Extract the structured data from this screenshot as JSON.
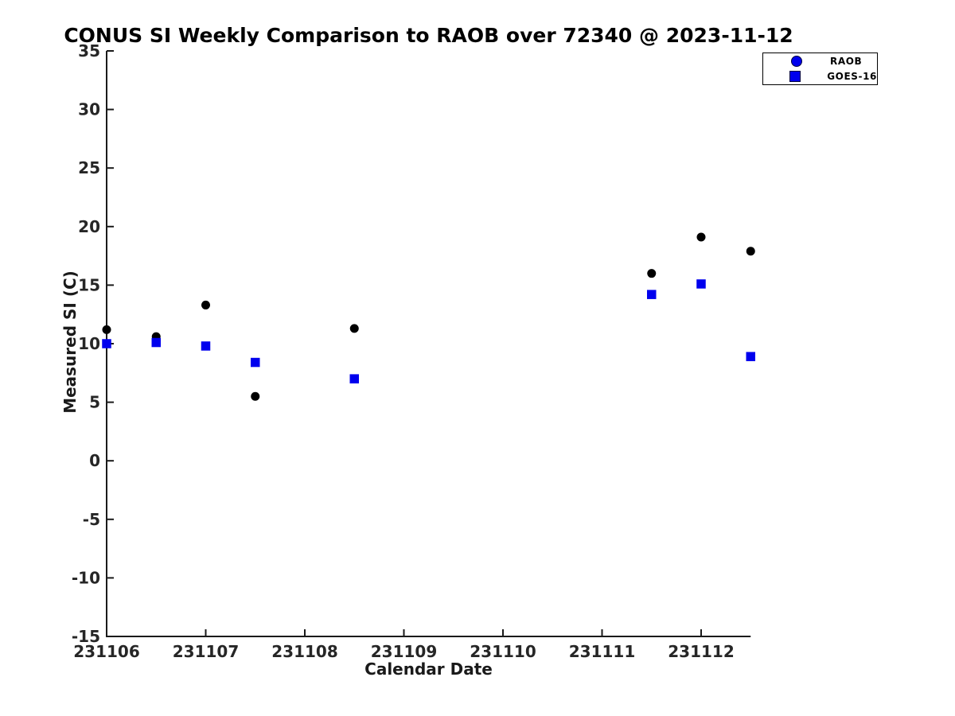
{
  "page": {
    "background": "#ffffff"
  },
  "chart_data": {
    "type": "scatter",
    "title": "CONUS SI Weekly Comparison to RAOB over 72340 @ 2023-11-12",
    "xlabel": "Calendar Date",
    "ylabel": "Measured SI (C)",
    "xlim": [
      231106,
      231112.5
    ],
    "ylim": [
      -15,
      35
    ],
    "x_ticks": [
      231106,
      231107,
      231108,
      231109,
      231110,
      231111,
      231112
    ],
    "y_ticks": [
      35,
      30,
      25,
      20,
      15,
      10,
      5,
      0,
      -5,
      -10,
      -15
    ],
    "grid": false,
    "legend_position": "top-right",
    "axis_color": "#1a1a1a",
    "tick_label_color": "#262626",
    "series": [
      {
        "name": "RAOB",
        "marker": "circle",
        "color": "#000000",
        "legend_marker_color": "#0000ee",
        "points": [
          [
            231106.0,
            11.2
          ],
          [
            231106.5,
            10.6
          ],
          [
            231107.0,
            13.3
          ],
          [
            231107.5,
            5.5
          ],
          [
            231108.5,
            11.3
          ],
          [
            231111.5,
            16.0
          ],
          [
            231112.0,
            19.1
          ],
          [
            231112.5,
            17.9
          ]
        ]
      },
      {
        "name": "GOES-16",
        "marker": "square",
        "color": "#0000ee",
        "legend_marker_color": "#0000ee",
        "points": [
          [
            231106.0,
            10.0
          ],
          [
            231106.5,
            10.1
          ],
          [
            231107.0,
            9.8
          ],
          [
            231107.5,
            8.4
          ],
          [
            231108.5,
            7.0
          ],
          [
            231111.5,
            14.2
          ],
          [
            231112.0,
            15.1
          ],
          [
            231112.5,
            8.9
          ]
        ]
      }
    ]
  }
}
